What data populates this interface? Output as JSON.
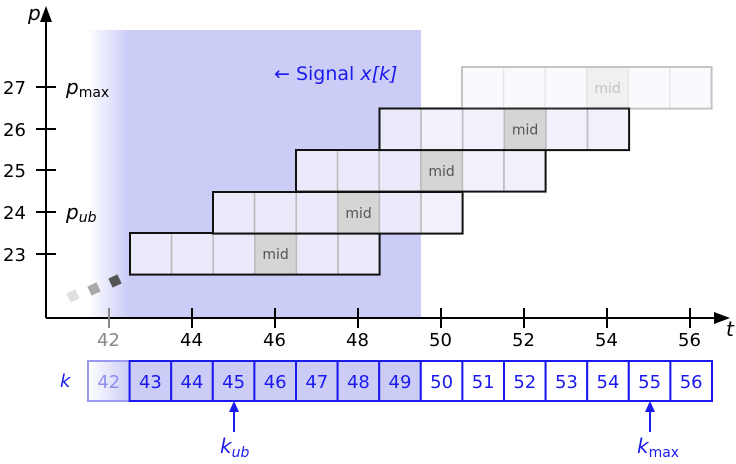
{
  "axes": {
    "x_label": "t",
    "y_label": "p",
    "x_ticks": [
      "42",
      "44",
      "46",
      "48",
      "50",
      "52",
      "54",
      "56"
    ],
    "y_ticks": [
      "23",
      "24",
      "25",
      "26",
      "27"
    ]
  },
  "annotations": {
    "p_max": {
      "base": "p",
      "sub": "max"
    },
    "p_ub": {
      "base": "p",
      "sub": "ub"
    },
    "signal": {
      "arrow": "← Signal ",
      "name": "x[k]"
    },
    "k_row_label": "k",
    "k_ub": {
      "base": "k",
      "sub": "ub"
    },
    "k_max": {
      "base": "k",
      "sub": "max"
    }
  },
  "mid_label": "mid",
  "k_cells": [
    "42",
    "43",
    "44",
    "45",
    "46",
    "47",
    "48",
    "49",
    "50",
    "51",
    "52",
    "53",
    "54",
    "55",
    "56"
  ],
  "colors": {
    "signal_region": "#cccdf7",
    "signal_blue": "#1a1aee",
    "row_fill": "#eeeefc",
    "mid_fill": "#d5d5d5"
  }
}
